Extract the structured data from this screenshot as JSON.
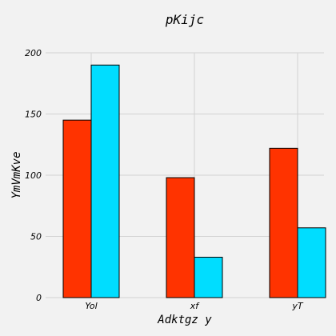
{
  "chart_data": {
    "type": "bar",
    "title": "pKijc",
    "xlabel": "Adktgz y",
    "ylabel": "YmVmKve",
    "categories": [
      "Yol",
      "xf",
      "yT"
    ],
    "series": [
      {
        "values": [
          145,
          98,
          122
        ],
        "color": "#ff3300"
      },
      {
        "values": [
          190,
          33,
          57
        ],
        "color": "#00ddff"
      }
    ],
    "ylim": [
      0,
      200
    ],
    "yticks": [
      0,
      50,
      100,
      150,
      200
    ],
    "grid": true,
    "background": "#f2f2f2"
  }
}
